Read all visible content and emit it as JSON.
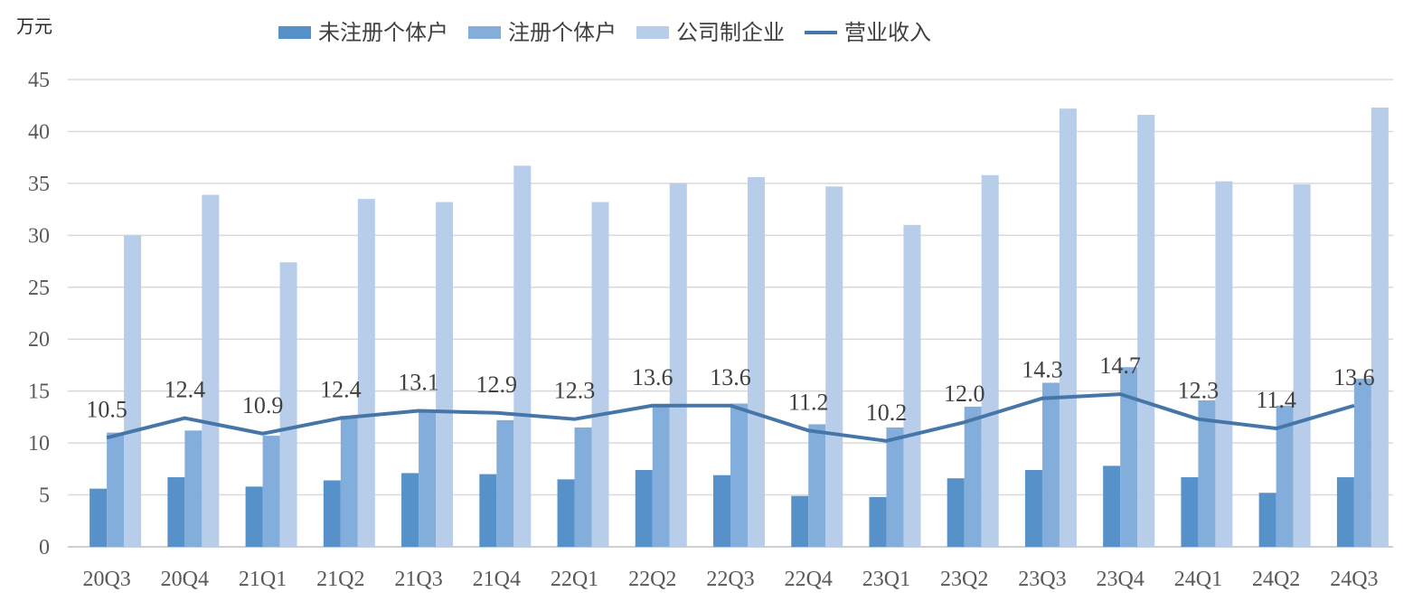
{
  "chart_data": {
    "type": "bar+line",
    "unit_label": "万元",
    "categories": [
      "20Q3",
      "20Q4",
      "21Q1",
      "21Q2",
      "21Q3",
      "21Q4",
      "22Q1",
      "22Q2",
      "22Q3",
      "22Q4",
      "23Q1",
      "23Q2",
      "23Q3",
      "23Q4",
      "24Q1",
      "24Q2",
      "24Q3"
    ],
    "ylim": [
      0,
      45
    ],
    "yticks": [
      0,
      5,
      10,
      15,
      20,
      25,
      30,
      35,
      40,
      45
    ],
    "grid": true,
    "legend_position": "top",
    "series": [
      {
        "name": "未注册个体户",
        "type": "bar",
        "color": "#5692c9",
        "values": [
          5.6,
          6.7,
          5.8,
          6.4,
          7.1,
          7.0,
          6.5,
          7.4,
          6.9,
          4.9,
          4.8,
          6.6,
          7.4,
          7.8,
          6.7,
          5.2,
          6.7
        ]
      },
      {
        "name": "注册个体户",
        "type": "bar",
        "color": "#83aedb",
        "values": [
          11.0,
          11.2,
          10.7,
          12.6,
          13.0,
          12.2,
          11.5,
          13.6,
          13.8,
          11.8,
          11.5,
          13.5,
          15.8,
          17.3,
          14.1,
          13.6,
          16.2
        ]
      },
      {
        "name": "公司制企业",
        "type": "bar",
        "color": "#b7cde9",
        "values": [
          30.0,
          33.9,
          27.4,
          33.5,
          33.2,
          36.7,
          33.2,
          35.0,
          35.6,
          34.7,
          31.0,
          35.8,
          42.2,
          41.6,
          35.2,
          34.9,
          42.3
        ]
      },
      {
        "name": "营业收入",
        "type": "line",
        "color": "#4676a8",
        "values": [
          10.5,
          12.4,
          10.9,
          12.4,
          13.1,
          12.9,
          12.3,
          13.6,
          13.6,
          11.2,
          10.2,
          12.0,
          14.3,
          14.7,
          12.3,
          11.4,
          13.6
        ],
        "labels": [
          "10.5",
          "12.4",
          "10.9",
          "12.4",
          "13.1",
          "12.9",
          "12.3",
          "13.6",
          "13.6",
          "11.2",
          "10.2",
          "12.0",
          "14.3",
          "14.7",
          "12.3",
          "11.4",
          "13.6"
        ]
      }
    ]
  }
}
